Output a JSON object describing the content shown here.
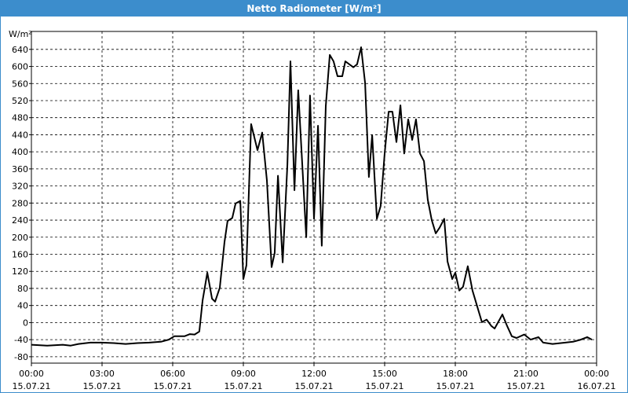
{
  "chart_data": {
    "type": "line",
    "title": "Netto Radiometer [W/m²]",
    "y_label": "W/m²",
    "x": [
      0,
      0.67,
      1.33,
      1.67,
      2,
      2.5,
      3,
      3.5,
      4,
      4.5,
      5,
      5.5,
      5.83,
      6.07,
      6.5,
      6.73,
      6.93,
      7.13,
      7.27,
      7.47,
      7.67,
      7.8,
      8,
      8.2,
      8.33,
      8.53,
      8.67,
      8.87,
      9,
      9.13,
      9.33,
      9.6,
      9.8,
      10,
      10.2,
      10.33,
      10.47,
      10.67,
      10.87,
      11,
      11.17,
      11.33,
      11.67,
      11.83,
      12,
      12.17,
      12.33,
      12.5,
      12.67,
      12.83,
      13,
      13.2,
      13.33,
      13.67,
      13.83,
      14,
      14.17,
      14.33,
      14.47,
      14.67,
      14.83,
      15,
      15.17,
      15.33,
      15.5,
      15.67,
      15.83,
      16,
      16.17,
      16.33,
      16.5,
      16.67,
      16.83,
      17,
      17.17,
      17.33,
      17.53,
      17.67,
      17.87,
      18,
      18.17,
      18.33,
      18.53,
      18.73,
      18.93,
      19.13,
      19.33,
      19.53,
      19.67,
      20,
      20.2,
      20.4,
      20.6,
      20.93,
      21.2,
      21.53,
      21.73,
      22.13,
      22.67,
      23,
      23.33,
      23.6,
      23.8
    ],
    "series": [
      {
        "name": "Netto Radiometer",
        "color": "#000000",
        "values": [
          -52,
          -54,
          -52,
          -54,
          -50,
          -47,
          -47,
          -48,
          -50,
          -48,
          -47,
          -45,
          -40,
          -32,
          -32,
          -27,
          -28,
          -21,
          52,
          117,
          56,
          49,
          82,
          189,
          238,
          245,
          279,
          285,
          102,
          134,
          465,
          404,
          445,
          333,
          130,
          163,
          344,
          141,
          370,
          612,
          310,
          544,
          200,
          532,
          243,
          461,
          180,
          507,
          627,
          612,
          577,
          577,
          612,
          598,
          605,
          645,
          561,
          341,
          439,
          243,
          273,
          396,
          494,
          494,
          423,
          509,
          396,
          476,
          428,
          476,
          396,
          378,
          288,
          240,
          209,
          222,
          243,
          143,
          102,
          117,
          75,
          84,
          132,
          75,
          38,
          1,
          7,
          -8,
          -14,
          19,
          -8,
          -32,
          -36,
          -28,
          -40,
          -34,
          -47,
          -50,
          -47,
          -45,
          -40,
          -34,
          -40
        ]
      }
    ],
    "xlim": [
      0,
      24
    ],
    "xticks": [
      {
        "value": 0,
        "label": "00:00",
        "date": "15.07.21"
      },
      {
        "value": 3,
        "label": "03:00",
        "date": "15.07.21"
      },
      {
        "value": 6,
        "label": "06:00",
        "date": "15.07.21"
      },
      {
        "value": 9,
        "label": "09:00",
        "date": "15.07.21"
      },
      {
        "value": 12,
        "label": "12:00",
        "date": "15.07.21"
      },
      {
        "value": 15,
        "label": "15:00",
        "date": "15.07.21"
      },
      {
        "value": 18,
        "label": "18:00",
        "date": "15.07.21"
      },
      {
        "value": 21,
        "label": "21:00",
        "date": "15.07.21"
      },
      {
        "value": 24,
        "label": "00:00",
        "date": "16.07.21"
      }
    ],
    "ylim": [
      -95,
      682
    ],
    "yticks": [
      -80,
      -40,
      0,
      40,
      80,
      120,
      160,
      200,
      240,
      280,
      320,
      360,
      400,
      440,
      480,
      520,
      560,
      600,
      640
    ],
    "grid": true
  }
}
